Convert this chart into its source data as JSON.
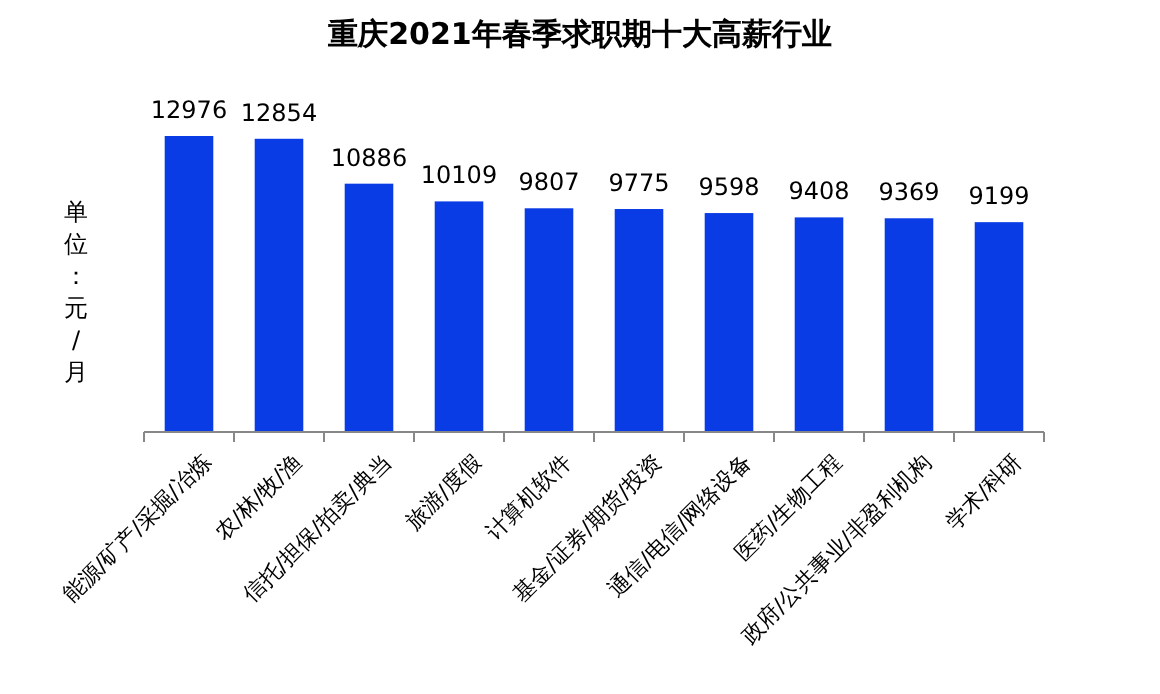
{
  "chart_data": {
    "type": "bar",
    "title": "重庆2021年春季求职期十大高薪行业",
    "ylabel": "单位：元/月",
    "categories": [
      "能源/矿产/采掘/冶炼",
      "农/林/牧/渔",
      "信托/担保/拍卖/典当",
      "旅游/度假",
      "计算机软件",
      "基金/证券/期货/投资",
      "通信/电信/网络设备",
      "医药/生物工程",
      "政府/公共事业/非盈利机构",
      "学术/科研"
    ],
    "values": [
      12976,
      12854,
      10886,
      10109,
      9807,
      9775,
      9598,
      9408,
      9369,
      9199
    ],
    "color": "#0a3ce6",
    "data_labels": true
  }
}
